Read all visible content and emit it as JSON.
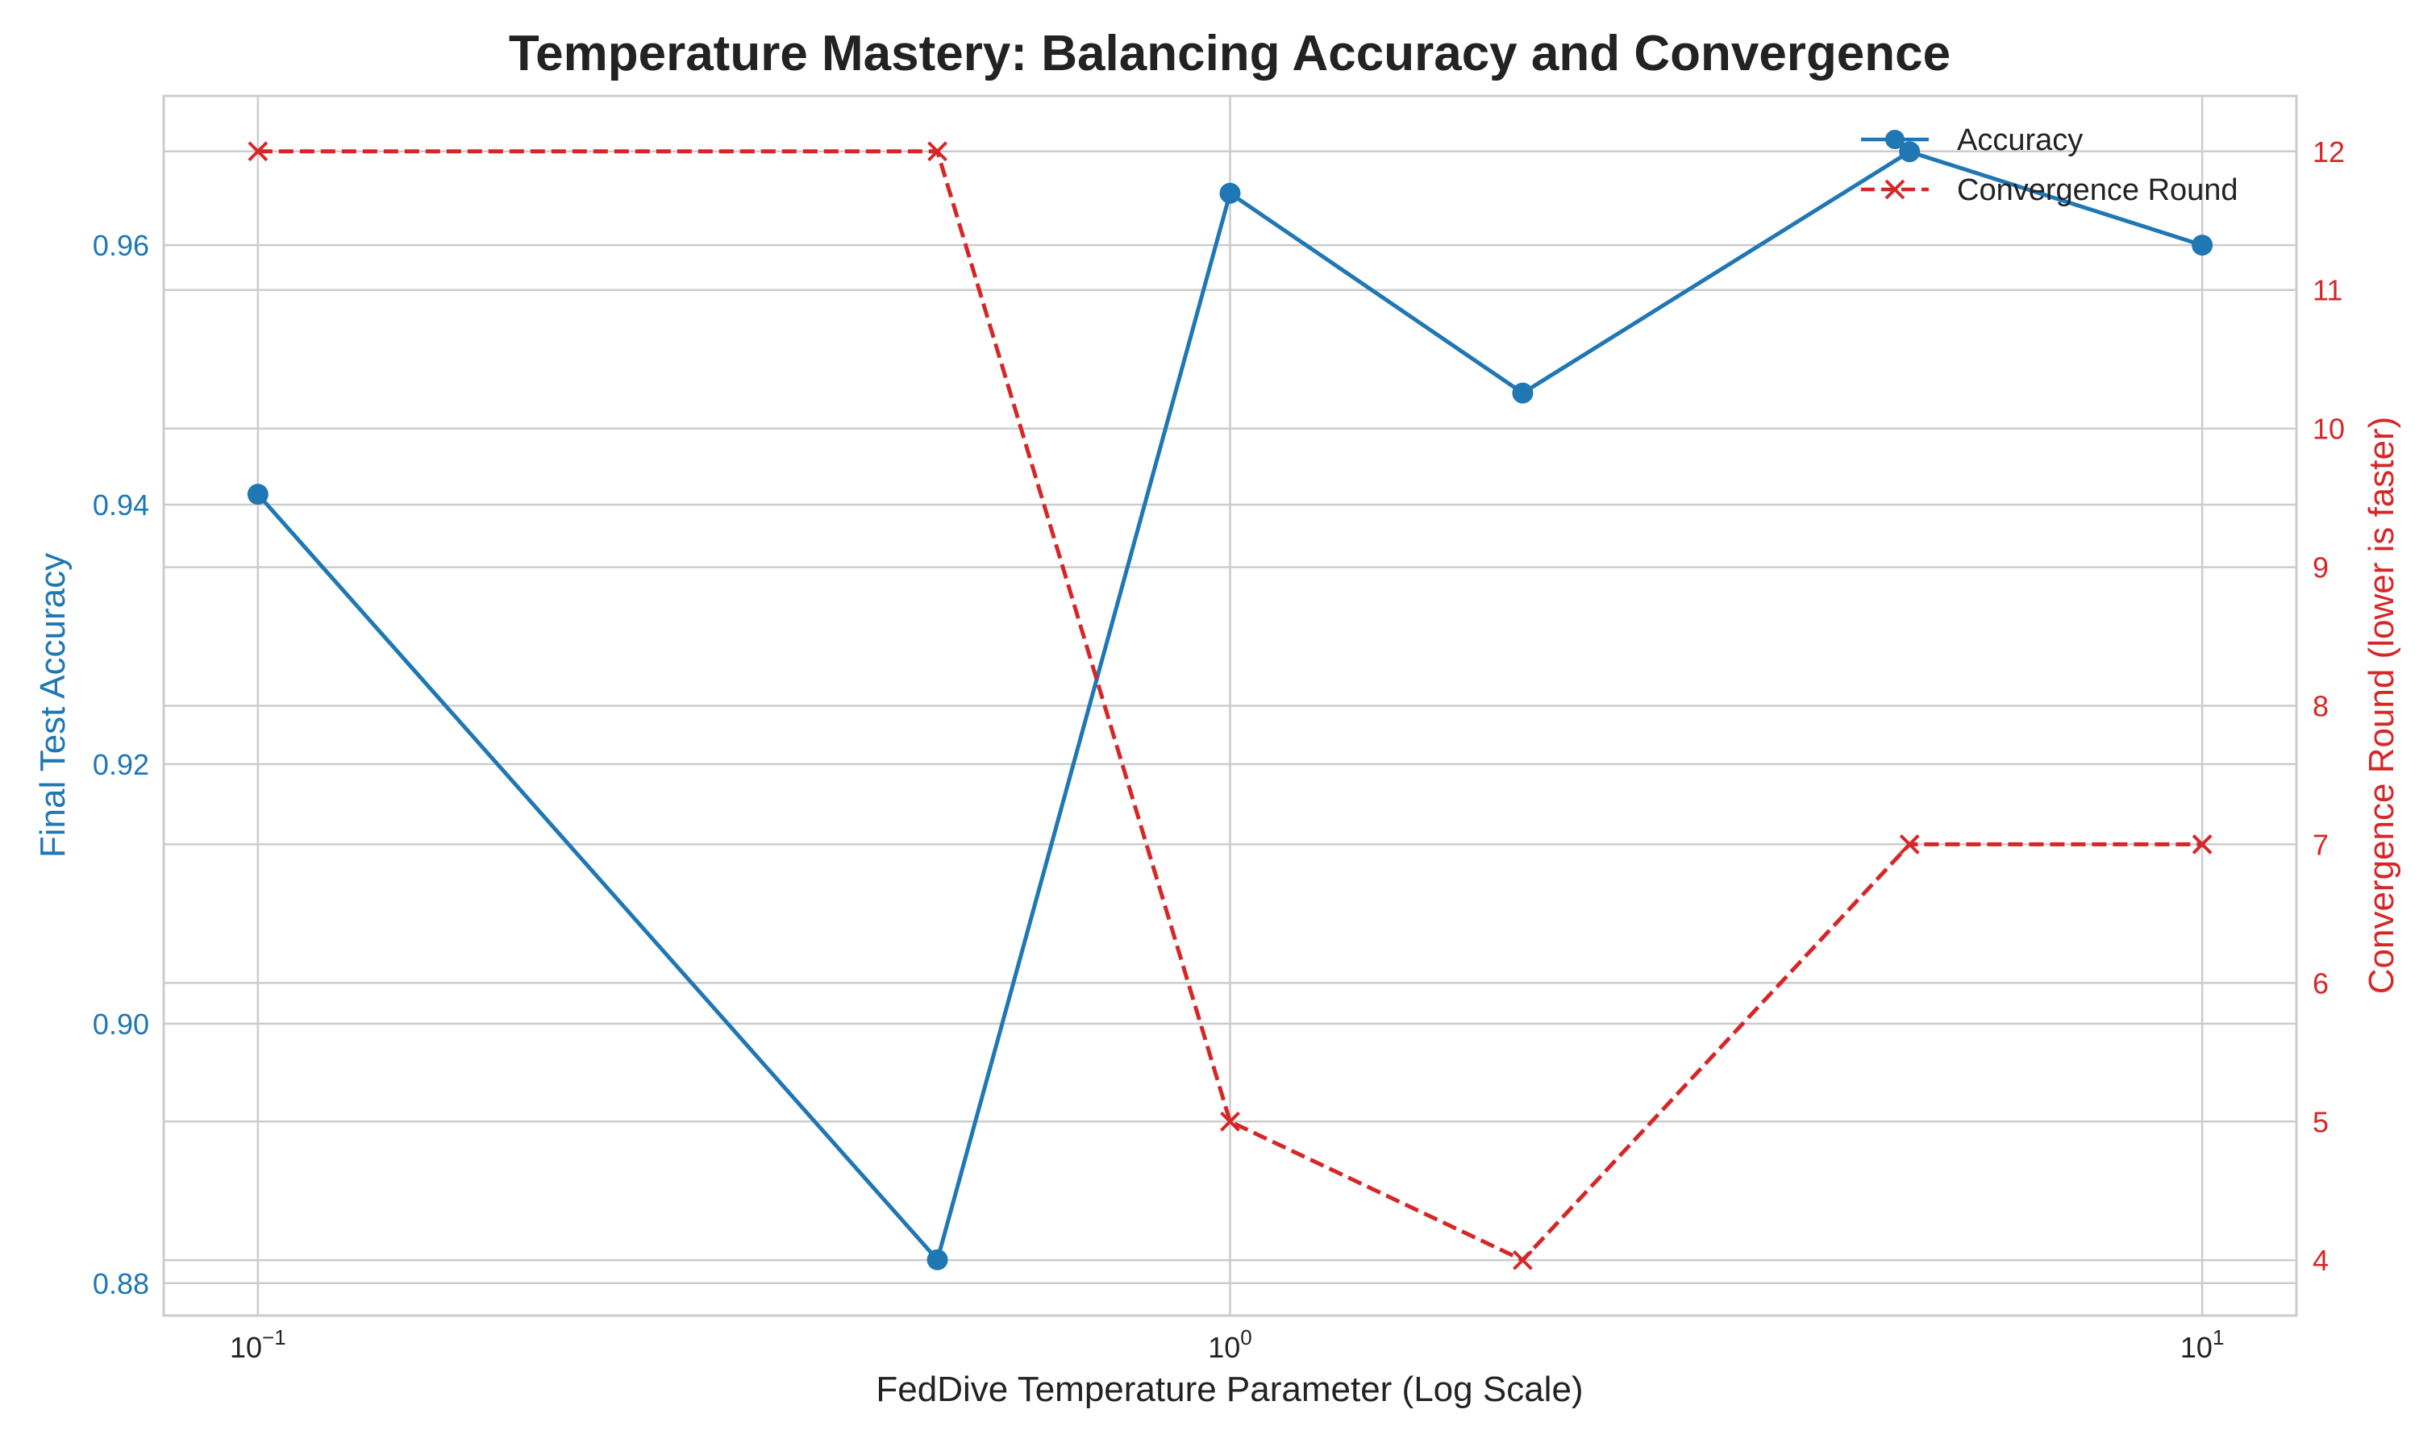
{
  "chart_data": {
    "type": "line",
    "title": "Temperature Mastery: Balancing Accuracy and Convergence",
    "xlabel": "FedDive Temperature Parameter (Log Scale)",
    "xscale": "log",
    "xlim": [
      0.08,
      12.5
    ],
    "x": [
      0.1,
      0.5,
      1.0,
      2.0,
      5.0,
      10.0
    ],
    "x_ticks": [
      {
        "value": 0.1,
        "base": "10",
        "exp": "−1"
      },
      {
        "value": 1,
        "base": "10",
        "exp": "0"
      },
      {
        "value": 10,
        "base": "10",
        "exp": "1"
      }
    ],
    "y_left": {
      "label": "Final Test Accuracy",
      "color": "#1f77b4",
      "lim": [
        0.8775,
        0.9715
      ],
      "ticks": [
        0.88,
        0.9,
        0.92,
        0.94,
        0.96
      ],
      "tick_labels": [
        "0.88",
        "0.90",
        "0.92",
        "0.94",
        "0.96"
      ]
    },
    "y_right": {
      "label": "Convergence Round (lower is faster)",
      "color": "#d62728",
      "lim": [
        3.6,
        12.4
      ],
      "ticks": [
        4,
        5,
        6,
        7,
        8,
        9,
        10,
        11,
        12
      ],
      "tick_labels": [
        "4",
        "5",
        "6",
        "7",
        "8",
        "9",
        "10",
        "11",
        "12"
      ]
    },
    "series": [
      {
        "name": "Accuracy",
        "axis": "left",
        "color": "#1f77b4",
        "marker": "circle",
        "linestyle": "solid",
        "values": [
          0.9408,
          0.8818,
          0.964,
          0.9486,
          0.9672,
          0.96
        ]
      },
      {
        "name": "Convergence Round",
        "axis": "right",
        "color": "#d62728",
        "marker": "x",
        "linestyle": "dashed",
        "values": [
          12,
          12,
          5,
          4,
          7,
          7
        ]
      }
    ],
    "grid": true,
    "legend_position": "top-right"
  }
}
